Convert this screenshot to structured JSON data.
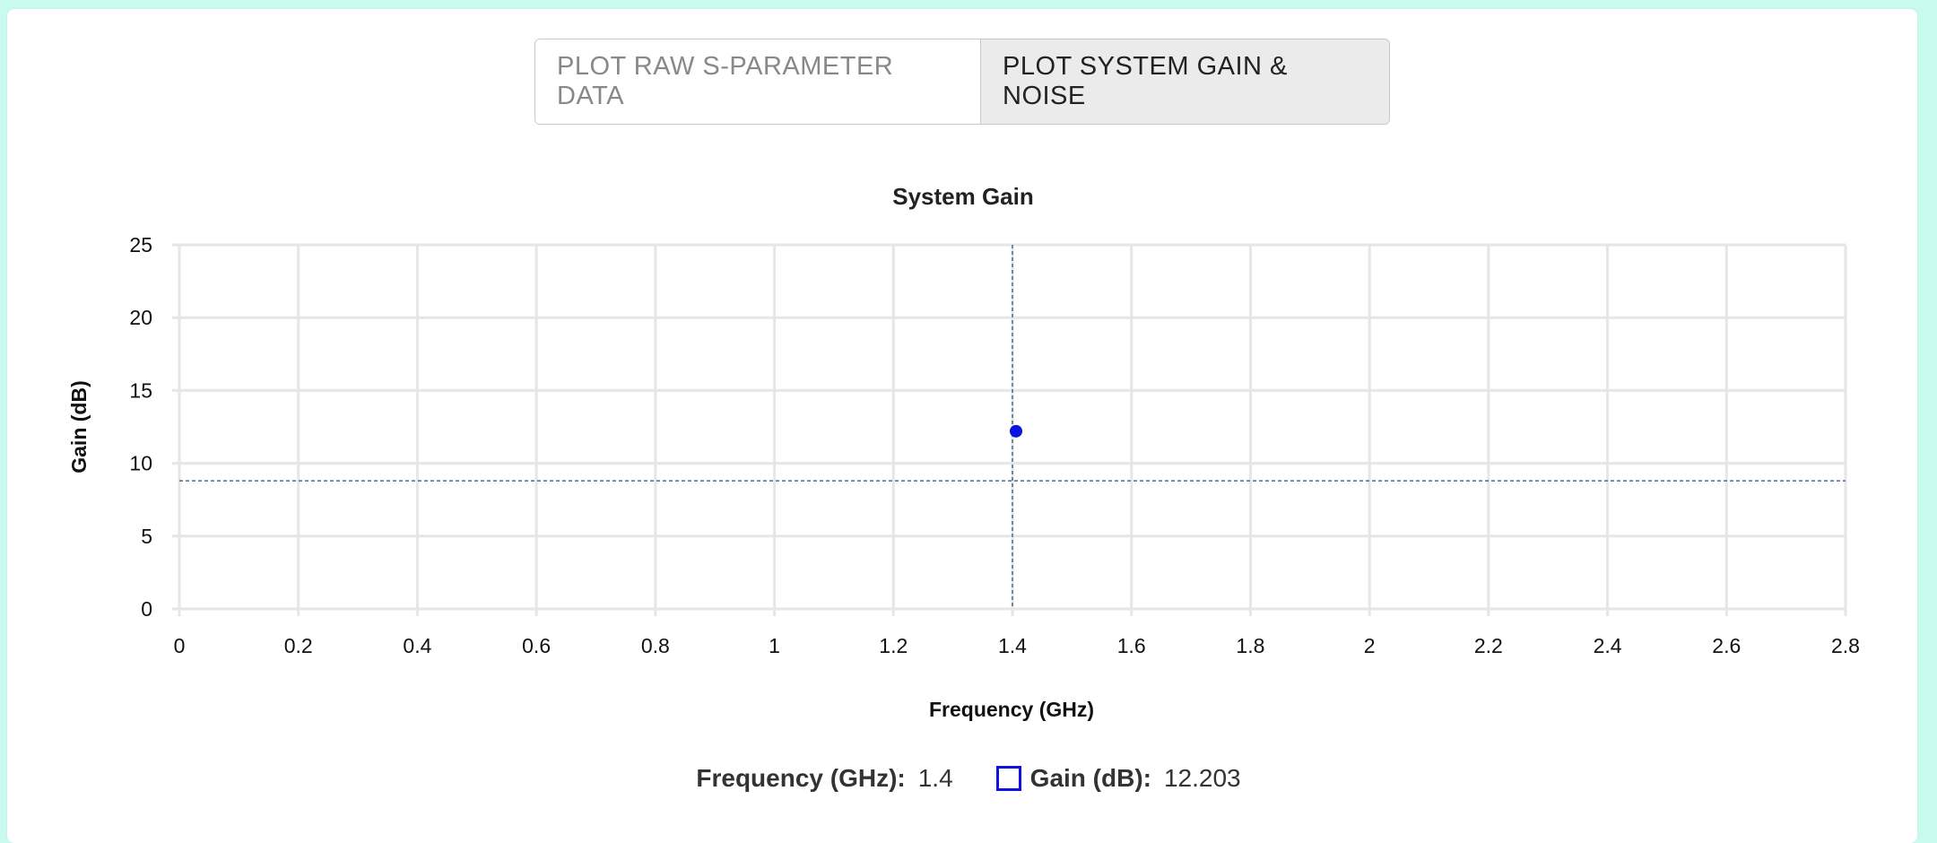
{
  "toggle": {
    "raw_label": "PLOT RAW S-PARAMETER DATA",
    "system_label": "PLOT SYSTEM GAIN & NOISE",
    "active": "system"
  },
  "colors": {
    "point": "#0a14dc",
    "crosshair": "#4a6a8a",
    "grid": "#e6e6e6"
  },
  "chart_data": {
    "type": "scatter",
    "title": "System Gain",
    "xlabel": "Frequency (GHz)",
    "ylabel": "Gain (dB)",
    "xlim": [
      0,
      2.8
    ],
    "ylim": [
      0,
      25
    ],
    "xticks": [
      "0",
      "0.2",
      "0.4",
      "0.6",
      "0.8",
      "1",
      "1.2",
      "1.4",
      "1.6",
      "1.8",
      "2",
      "2.2",
      "2.4",
      "2.6",
      "2.8"
    ],
    "yticks": [
      "0",
      "5",
      "10",
      "15",
      "20",
      "25"
    ],
    "grid": true,
    "series": [
      {
        "points": [
          {
            "x": 1.4,
            "y": 12.203
          }
        ]
      }
    ],
    "crosshair": {
      "x": 1.4,
      "y": 8.8
    }
  },
  "legend": {
    "freq_label": "Frequency (GHz):",
    "freq_value": "1.4",
    "gain_label": "Gain (dB):",
    "gain_value": "12.203"
  }
}
